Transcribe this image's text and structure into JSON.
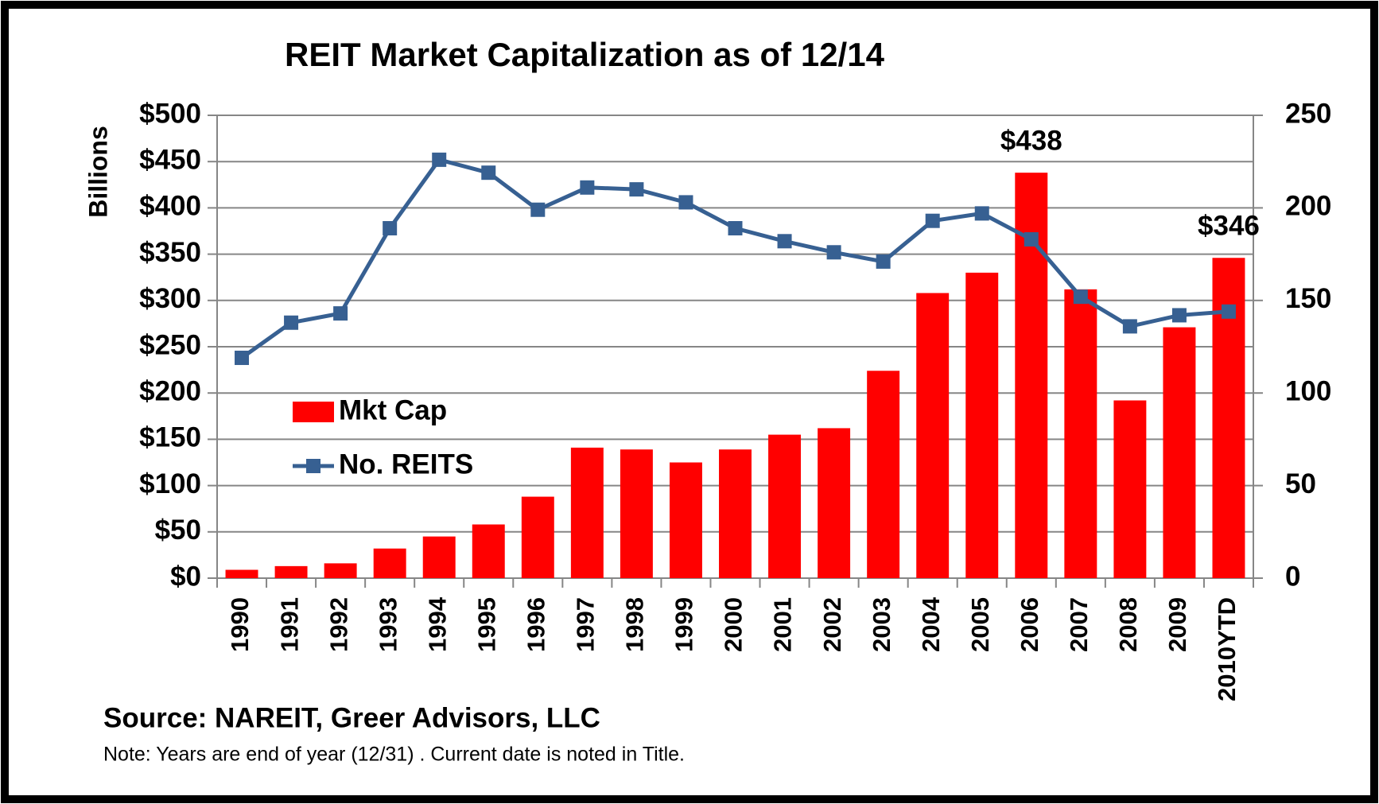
{
  "chart_data": {
    "type": "bar_line",
    "title": "REIT Market Capitalization as of 12/14",
    "y_label": "Billions",
    "source": "Source: NAREIT, Greer Advisors, LLC",
    "note": "Note:  Years are  end of year (12/31) .  Current date is noted in Title.",
    "categories": [
      "1990",
      "1991",
      "1992",
      "1993",
      "1994",
      "1995",
      "1996",
      "1997",
      "1998",
      "1999",
      "2000",
      "2001",
      "2002",
      "2003",
      "2004",
      "2005",
      "2006",
      "2007",
      "2008",
      "2009",
      "2010YTD"
    ],
    "series": [
      {
        "name": "Mkt Cap",
        "type": "bar",
        "color": "#ff0000",
        "values": [
          9,
          13,
          16,
          32,
          45,
          58,
          88,
          141,
          139,
          125,
          139,
          155,
          162,
          224,
          308,
          330,
          438,
          312,
          192,
          271,
          346
        ],
        "value_labels": [
          null,
          null,
          null,
          null,
          null,
          null,
          null,
          null,
          null,
          null,
          null,
          null,
          null,
          null,
          null,
          null,
          "$438",
          null,
          null,
          null,
          "$346"
        ]
      },
      {
        "name": "No. REITS",
        "type": "line",
        "axis": "y2",
        "color": "#376092",
        "values": [
          119,
          138,
          143,
          189,
          226,
          219,
          199,
          211,
          210,
          203,
          189,
          182,
          176,
          171,
          193,
          197,
          183,
          152,
          136,
          142,
          144
        ]
      }
    ],
    "ylim": [
      0,
      500
    ],
    "yticks": [
      {
        "value": 0,
        "label": "$0"
      },
      {
        "value": 50,
        "label": "$50"
      },
      {
        "value": 100,
        "label": "$100"
      },
      {
        "value": 150,
        "label": "$150"
      },
      {
        "value": 200,
        "label": "$200"
      },
      {
        "value": 250,
        "label": "$250"
      },
      {
        "value": 300,
        "label": "$300"
      },
      {
        "value": 350,
        "label": "$350"
      },
      {
        "value": 400,
        "label": "$400"
      },
      {
        "value": 450,
        "label": "$450"
      },
      {
        "value": 500,
        "label": "$500"
      }
    ],
    "y2lim": [
      0,
      250
    ],
    "y2ticks": [
      0,
      50,
      100,
      150,
      200,
      250
    ],
    "grid": true,
    "legend": "left"
  }
}
